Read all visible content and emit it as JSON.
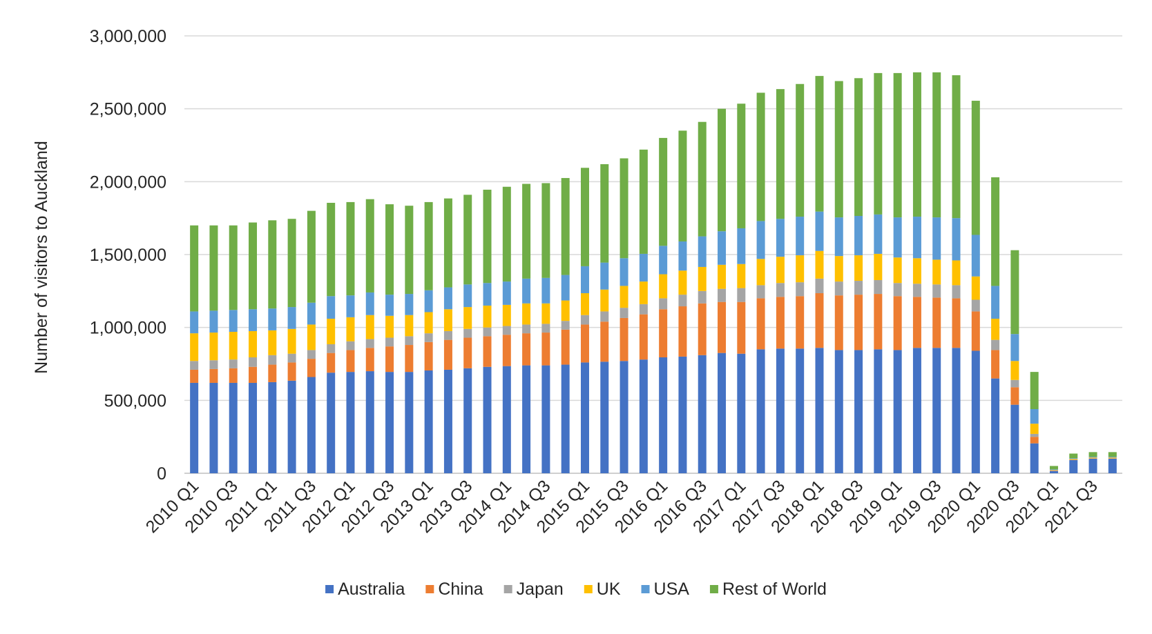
{
  "chart_data": {
    "type": "bar",
    "stacked": true,
    "title": "",
    "xlabel": "",
    "ylabel": "Number of visitors to Auckland",
    "ylim": [
      0,
      3000000
    ],
    "y_ticks": [
      0,
      500000,
      1000000,
      1500000,
      2000000,
      2500000,
      3000000
    ],
    "y_tick_labels": [
      "0",
      "500,000",
      "1,000,000",
      "1,500,000",
      "2,000,000",
      "2,500,000",
      "3,000,000"
    ],
    "grid": true,
    "legend_position": "bottom",
    "categories": [
      "2010 Q1",
      "2010 Q2",
      "2010 Q3",
      "2010 Q4",
      "2011 Q1",
      "2011 Q2",
      "2011 Q3",
      "2011 Q4",
      "2012 Q1",
      "2012 Q2",
      "2012 Q3",
      "2012 Q4",
      "2013 Q1",
      "2013 Q2",
      "2013 Q3",
      "2013 Q4",
      "2014 Q1",
      "2014 Q2",
      "2014 Q3",
      "2014 Q4",
      "2015 Q1",
      "2015 Q2",
      "2015 Q3",
      "2015 Q4",
      "2016 Q1",
      "2016 Q2",
      "2016 Q3",
      "2016 Q4",
      "2017 Q1",
      "2017 Q2",
      "2017 Q3",
      "2017 Q4",
      "2018 Q1",
      "2018 Q2",
      "2018 Q3",
      "2018 Q4",
      "2019 Q1",
      "2019 Q2",
      "2019 Q3",
      "2019 Q4",
      "2020 Q1",
      "2020 Q2",
      "2020 Q3",
      "2020 Q4",
      "2021 Q1",
      "2021 Q2",
      "2021 Q3",
      "2021 Q4"
    ],
    "x_tick_labels": [
      "2010 Q1",
      "2010 Q3",
      "2011 Q1",
      "2011 Q3",
      "2012 Q1",
      "2012 Q3",
      "2013 Q1",
      "2013 Q3",
      "2014 Q1",
      "2014 Q3",
      "2015 Q1",
      "2015 Q3",
      "2016 Q1",
      "2016 Q3",
      "2017 Q1",
      "2017 Q3",
      "2018 Q1",
      "2018 Q3",
      "2019 Q1",
      "2019 Q3",
      "2020 Q1",
      "2020 Q3",
      "2021 Q1",
      "2021 Q3"
    ],
    "series": [
      {
        "name": "Australia",
        "color": "#4472C4",
        "values": [
          620000,
          620000,
          620000,
          620000,
          625000,
          635000,
          660000,
          690000,
          695000,
          700000,
          695000,
          695000,
          705000,
          710000,
          720000,
          730000,
          735000,
          740000,
          740000,
          745000,
          760000,
          765000,
          770000,
          780000,
          795000,
          800000,
          810000,
          825000,
          820000,
          850000,
          855000,
          855000,
          860000,
          845000,
          845000,
          850000,
          845000,
          860000,
          860000,
          860000,
          840000,
          650000,
          470000,
          205000,
          15000,
          90000,
          100000,
          100000
        ]
      },
      {
        "name": "China",
        "color": "#ED7D31",
        "values": [
          90000,
          95000,
          100000,
          110000,
          120000,
          125000,
          125000,
          135000,
          150000,
          160000,
          175000,
          185000,
          195000,
          205000,
          210000,
          210000,
          215000,
          220000,
          225000,
          240000,
          260000,
          275000,
          295000,
          310000,
          330000,
          345000,
          355000,
          350000,
          355000,
          350000,
          355000,
          360000,
          375000,
          375000,
          380000,
          380000,
          370000,
          350000,
          345000,
          340000,
          270000,
          195000,
          120000,
          45000,
          3000,
          2000,
          2000,
          2000
        ]
      },
      {
        "name": "Japan",
        "color": "#A5A5A5",
        "values": [
          60000,
          60000,
          60000,
          65000,
          65000,
          60000,
          60000,
          60000,
          60000,
          60000,
          60000,
          60000,
          60000,
          60000,
          60000,
          60000,
          60000,
          60000,
          60000,
          60000,
          65000,
          70000,
          70000,
          70000,
          75000,
          80000,
          85000,
          90000,
          95000,
          90000,
          95000,
          95000,
          100000,
          95000,
          95000,
          95000,
          90000,
          90000,
          90000,
          90000,
          80000,
          70000,
          50000,
          20000,
          1000,
          1000,
          1000,
          1000
        ]
      },
      {
        "name": "UK",
        "color": "#FFC000",
        "values": [
          190000,
          190000,
          190000,
          180000,
          170000,
          170000,
          175000,
          175000,
          165000,
          165000,
          150000,
          145000,
          145000,
          150000,
          150000,
          150000,
          145000,
          145000,
          140000,
          140000,
          150000,
          150000,
          150000,
          155000,
          165000,
          165000,
          165000,
          165000,
          165000,
          180000,
          180000,
          185000,
          190000,
          175000,
          175000,
          180000,
          175000,
          175000,
          170000,
          170000,
          160000,
          145000,
          130000,
          70000,
          3000,
          5000,
          5000,
          5000
        ]
      },
      {
        "name": "USA",
        "color": "#5B9BD5",
        "values": [
          150000,
          150000,
          150000,
          150000,
          150000,
          150000,
          150000,
          155000,
          150000,
          155000,
          145000,
          145000,
          150000,
          150000,
          155000,
          155000,
          160000,
          170000,
          175000,
          175000,
          185000,
          185000,
          190000,
          190000,
          195000,
          200000,
          210000,
          230000,
          245000,
          260000,
          260000,
          265000,
          270000,
          265000,
          270000,
          270000,
          275000,
          285000,
          290000,
          290000,
          285000,
          225000,
          185000,
          100000,
          5000,
          5000,
          5000,
          5000
        ]
      },
      {
        "name": "Rest of World",
        "color": "#70AD47",
        "values": [
          590000,
          585000,
          580000,
          595000,
          605000,
          605000,
          630000,
          640000,
          640000,
          640000,
          620000,
          605000,
          605000,
          610000,
          615000,
          640000,
          650000,
          650000,
          650000,
          665000,
          675000,
          675000,
          685000,
          715000,
          740000,
          760000,
          785000,
          840000,
          855000,
          880000,
          890000,
          910000,
          930000,
          935000,
          945000,
          970000,
          990000,
          990000,
          995000,
          980000,
          920000,
          745000,
          575000,
          255000,
          23000,
          32000,
          32000,
          32000
        ]
      }
    ]
  }
}
